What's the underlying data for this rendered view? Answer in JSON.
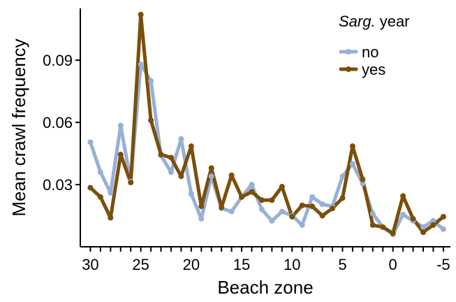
{
  "chart_data": {
    "type": "line",
    "xlabel": "Beach zone",
    "ylabel": "Mean crawl frequency",
    "xlim": [
      31,
      -5.7
    ],
    "ylim": [
      0.0,
      0.115
    ],
    "x_reversed": true,
    "x_ticks": [
      30,
      25,
      20,
      15,
      10,
      5,
      0,
      -5
    ],
    "x_tick_labels": [
      "30",
      "25",
      "20",
      "15",
      "10",
      "5",
      "0",
      "-5"
    ],
    "y_ticks": [
      0.03,
      0.06,
      0.09
    ],
    "y_tick_labels": [
      "0.03",
      "0.06",
      "0.09"
    ],
    "grid": false,
    "legend": {
      "title_italic": "Sarg.",
      "title_rest": " year",
      "position": "top-right"
    },
    "series": [
      {
        "name": "no",
        "color": "#97b0d6",
        "x": [
          30,
          29,
          28,
          27,
          26,
          25,
          24,
          23,
          22,
          21,
          20,
          19,
          18,
          17,
          16,
          15,
          14,
          13,
          12,
          11,
          10,
          9,
          8,
          7,
          6,
          5,
          4,
          3,
          2,
          1,
          0,
          -1,
          -2,
          -3,
          -4,
          -5
        ],
        "y": [
          0.0505,
          0.036,
          0.026,
          0.0585,
          0.0315,
          0.088,
          0.08,
          0.044,
          0.036,
          0.052,
          0.0255,
          0.0135,
          0.034,
          0.0185,
          0.017,
          0.024,
          0.03,
          0.018,
          0.0125,
          0.017,
          0.015,
          0.0105,
          0.024,
          0.0205,
          0.0195,
          0.034,
          0.04,
          0.0305,
          0.016,
          0.0095,
          0.006,
          0.0155,
          0.0125,
          0.0095,
          0.0125,
          0.0085
        ]
      },
      {
        "name": "yes",
        "color": "#7b4e0a",
        "x": [
          30,
          29,
          28,
          27,
          26,
          25,
          24,
          23,
          22,
          21,
          20,
          19,
          18,
          17,
          16,
          15,
          14,
          13,
          12,
          11,
          10,
          9,
          8,
          7,
          6,
          5,
          4,
          3,
          2,
          1,
          0,
          -1,
          -2,
          -3,
          -4,
          -5
        ],
        "y": [
          0.0285,
          0.024,
          0.014,
          0.0445,
          0.031,
          0.112,
          0.061,
          0.0445,
          0.043,
          0.034,
          0.0485,
          0.0195,
          0.038,
          0.019,
          0.0345,
          0.024,
          0.0265,
          0.0225,
          0.0225,
          0.029,
          0.0145,
          0.02,
          0.0195,
          0.015,
          0.0185,
          0.0235,
          0.0485,
          0.0325,
          0.0105,
          0.0095,
          0.0065,
          0.0245,
          0.0135,
          0.007,
          0.0105,
          0.0145
        ]
      }
    ]
  }
}
